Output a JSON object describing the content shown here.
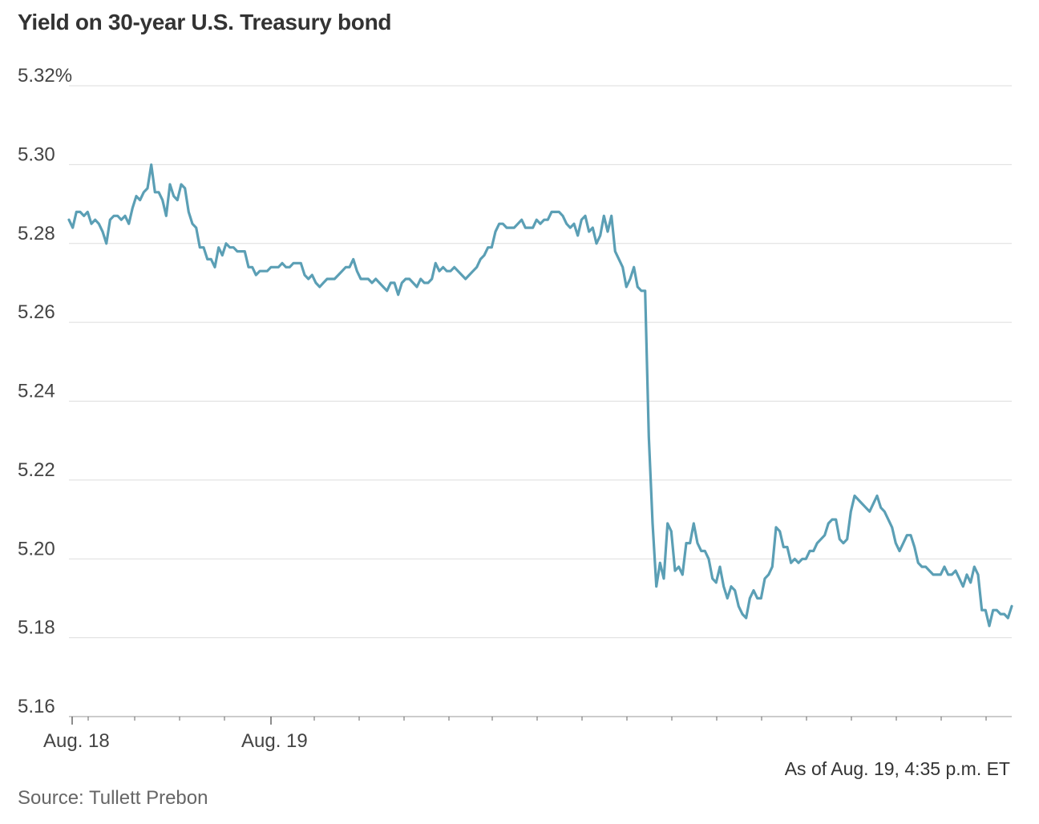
{
  "chart_data": {
    "type": "line",
    "title": "Yield on 30-year U.S. Treasury bond",
    "note": "As of Aug. 19, 4:35 p.m. ET",
    "source": "Source: Tullett Prebon",
    "ylim": [
      5.16,
      5.32
    ],
    "y_ticks": [
      {
        "value": 5.32,
        "label": "5.32%"
      },
      {
        "value": 5.3,
        "label": "5.30"
      },
      {
        "value": 5.28,
        "label": "5.28"
      },
      {
        "value": 5.26,
        "label": "5.26"
      },
      {
        "value": 5.24,
        "label": "5.24"
      },
      {
        "value": 5.22,
        "label": "5.22"
      },
      {
        "value": 5.2,
        "label": "5.20"
      },
      {
        "value": 5.18,
        "label": "5.18"
      },
      {
        "value": 5.16,
        "label": "5.16"
      }
    ],
    "grid": true,
    "x_labels": [
      "Aug. 18",
      "Aug. 19"
    ],
    "line_color": "#5b9fb5",
    "series": [
      {
        "values": [
          5.286,
          5.284,
          5.288,
          5.288,
          5.287,
          5.288,
          5.285,
          5.286,
          5.285,
          5.283,
          5.28,
          5.286,
          5.287,
          5.287,
          5.286,
          5.287,
          5.285,
          5.289,
          5.292,
          5.291,
          5.293,
          5.294,
          5.3,
          5.293,
          5.293,
          5.291,
          5.287,
          5.295,
          5.292,
          5.291,
          5.295,
          5.294,
          5.288,
          5.285,
          5.284,
          5.279,
          5.279,
          5.276,
          5.276,
          5.274,
          5.279,
          5.277,
          5.28,
          5.279,
          5.279,
          5.278,
          5.278,
          5.278,
          5.274,
          5.274,
          5.272,
          5.273,
          5.273,
          5.273,
          5.274,
          5.274,
          5.274,
          5.275,
          5.274,
          5.274,
          5.275,
          5.275,
          5.275,
          5.272,
          5.271,
          5.272,
          5.27,
          5.269,
          5.27,
          5.271,
          5.271,
          5.271,
          5.272,
          5.273,
          5.274,
          5.274,
          5.276,
          5.273,
          5.271,
          5.271,
          5.271,
          5.27,
          5.271,
          5.27,
          5.269,
          5.268,
          5.27,
          5.27,
          5.267,
          5.27,
          5.271,
          5.271,
          5.27,
          5.269,
          5.271,
          5.27,
          5.27,
          5.271,
          5.275,
          5.273,
          5.274,
          5.273,
          5.273,
          5.274,
          5.273,
          5.272,
          5.271,
          5.272,
          5.273,
          5.274,
          5.276,
          5.277,
          5.279,
          5.279,
          5.283,
          5.285,
          5.285,
          5.284,
          5.284,
          5.284,
          5.285,
          5.286,
          5.284,
          5.284,
          5.284,
          5.286,
          5.285,
          5.286,
          5.286,
          5.288,
          5.288,
          5.288,
          5.287,
          5.285,
          5.284,
          5.285,
          5.282,
          5.286,
          5.287,
          5.283,
          5.284,
          5.28,
          5.282,
          5.287,
          5.283,
          5.287,
          5.278,
          5.276,
          5.274,
          5.269,
          5.271,
          5.274,
          5.269,
          5.268,
          5.268,
          5.231,
          5.209,
          5.193,
          5.199,
          5.195,
          5.209,
          5.207,
          5.197,
          5.198,
          5.196,
          5.204,
          5.204,
          5.209,
          5.204,
          5.202,
          5.202,
          5.2,
          5.195,
          5.194,
          5.198,
          5.193,
          5.19,
          5.193,
          5.192,
          5.188,
          5.186,
          5.185,
          5.19,
          5.192,
          5.19,
          5.19,
          5.195,
          5.196,
          5.198,
          5.208,
          5.207,
          5.203,
          5.203,
          5.199,
          5.2,
          5.199,
          5.2,
          5.2,
          5.202,
          5.202,
          5.204,
          5.205,
          5.206,
          5.209,
          5.21,
          5.21,
          5.205,
          5.204,
          5.205,
          5.212,
          5.216,
          5.215,
          5.214,
          5.213,
          5.212,
          5.214,
          5.216,
          5.213,
          5.212,
          5.21,
          5.208,
          5.204,
          5.202,
          5.204,
          5.206,
          5.206,
          5.203,
          5.199,
          5.198,
          5.198,
          5.197,
          5.196,
          5.196,
          5.196,
          5.198,
          5.196,
          5.196,
          5.197,
          5.195,
          5.193,
          5.196,
          5.194,
          5.198,
          5.196,
          5.187,
          5.187,
          5.183,
          5.187,
          5.187,
          5.186,
          5.186,
          5.185,
          5.188
        ]
      }
    ]
  }
}
